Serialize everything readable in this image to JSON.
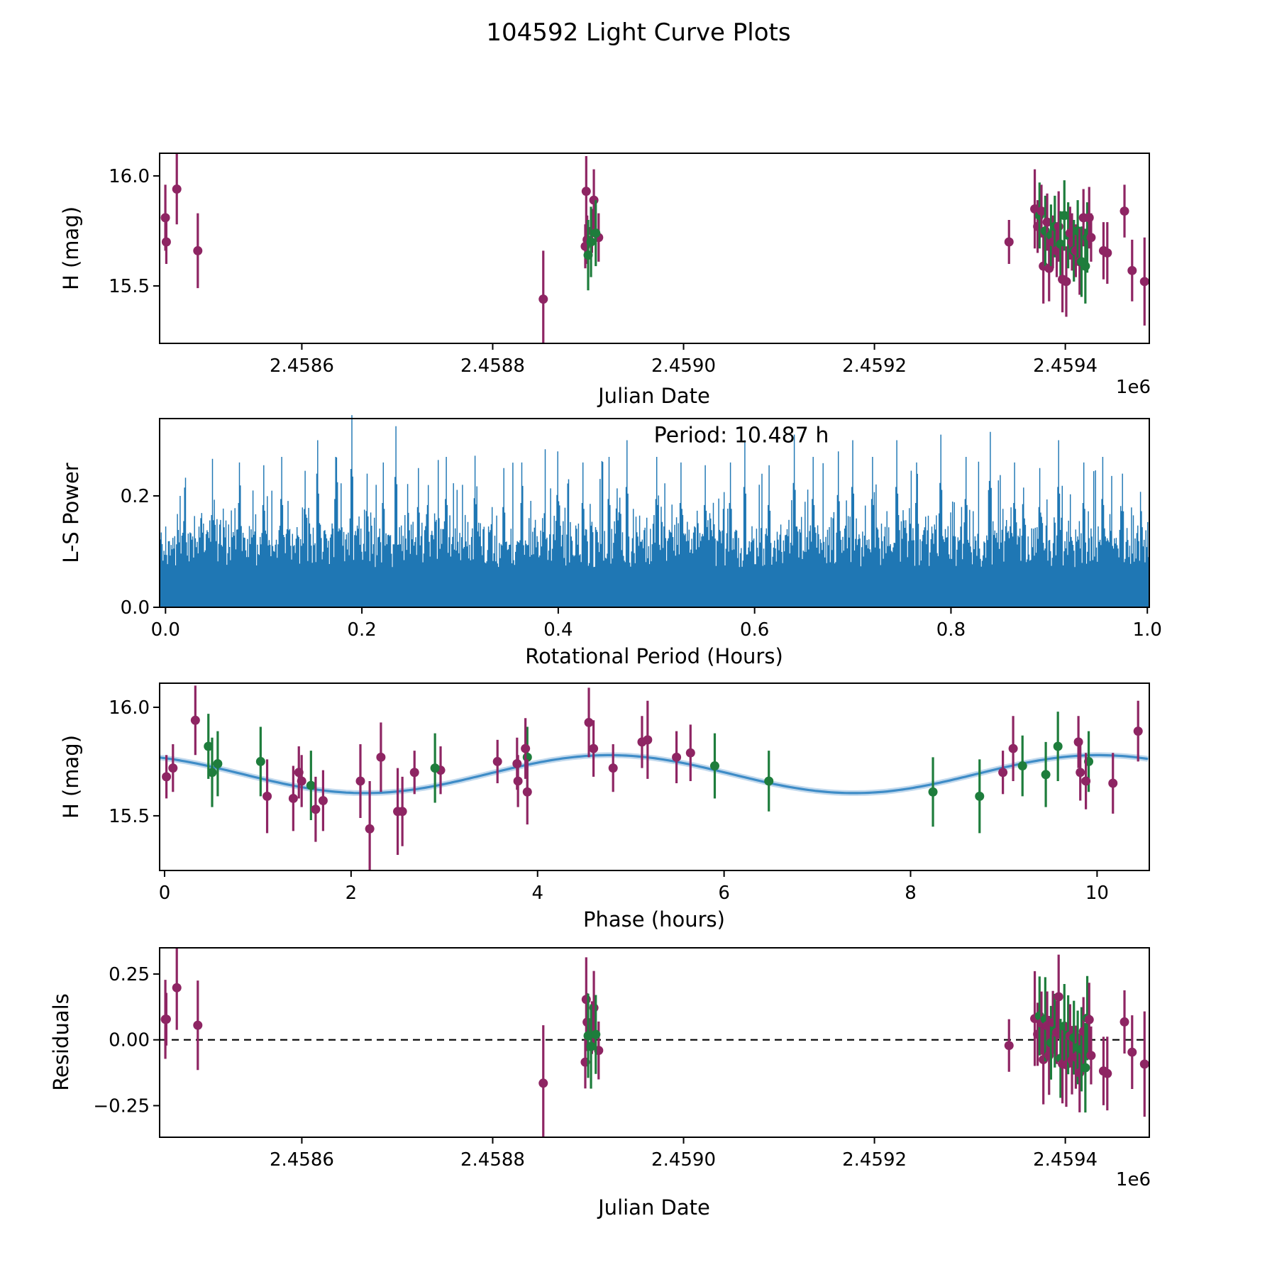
{
  "title": "104592 Light Curve Plots",
  "colors": {
    "purple": "#8E2563",
    "green": "#1E7D3C",
    "periodogram_blue": "#1f77b4",
    "curve_blue": "#3E8CC7",
    "curve_halo": "rgba(120,170,215,0.45)",
    "axis": "#000000"
  },
  "model": {
    "mean": 15.692,
    "amplitude": 0.0875,
    "period_hours": 5.2435,
    "phase_of_max": 4.77,
    "rotation_period_label": "Period: 10.487 h"
  },
  "observations": [
    {
      "jd": 2458457,
      "ph": 9.1,
      "mag": 15.81,
      "err": 0.15,
      "c": "p"
    },
    {
      "jd": 2458458,
      "ph": 2.68,
      "mag": 15.7,
      "err": 0.1,
      "c": "p"
    },
    {
      "jd": 2458469,
      "ph": 0.33,
      "mag": 15.94,
      "err": 0.16,
      "c": "p"
    },
    {
      "jd": 2458491,
      "ph": 2.1,
      "mag": 15.66,
      "err": 0.17,
      "c": "p"
    },
    {
      "jd": 2458853,
      "ph": 2.2,
      "mag": 15.44,
      "err": 0.22,
      "c": "p"
    },
    {
      "jd": 2458898,
      "ph": 4.55,
      "mag": 15.93,
      "err": 0.16,
      "c": "p"
    },
    {
      "jd": 2458906,
      "ph": 10.44,
      "mag": 15.89,
      "err": 0.14,
      "c": "p"
    },
    {
      "jd": 2458904,
      "ph": 3.57,
      "mag": 15.75,
      "err": 0.1,
      "c": "p"
    },
    {
      "jd": 2458899,
      "ph": 2.96,
      "mag": 15.71,
      "err": 0.11,
      "c": "p"
    },
    {
      "jd": 2458897,
      "ph": 0.02,
      "mag": 15.68,
      "err": 0.1,
      "c": "p"
    },
    {
      "jd": 2458911,
      "ph": 0.09,
      "mag": 15.72,
      "err": 0.11,
      "c": "p"
    },
    {
      "jd": 2458900,
      "ph": 1.57,
      "mag": 15.64,
      "err": 0.16,
      "c": "g"
    },
    {
      "jd": 2458903,
      "ph": 0.51,
      "mag": 15.7,
      "err": 0.16,
      "c": "g"
    },
    {
      "jd": 2458908,
      "ph": 0.57,
      "mag": 15.74,
      "err": 0.15,
      "c": "g"
    },
    {
      "jd": 2459341,
      "ph": 8.99,
      "mag": 15.7,
      "err": 0.1,
      "c": "p"
    },
    {
      "jd": 2459368,
      "ph": 5.18,
      "mag": 15.85,
      "err": 0.18,
      "c": "p"
    },
    {
      "jd": 2459371,
      "ph": 5.49,
      "mag": 15.77,
      "err": 0.12,
      "c": "p"
    },
    {
      "jd": 2459373,
      "ph": 0.47,
      "mag": 15.82,
      "err": 0.15,
      "c": "g"
    },
    {
      "jd": 2459375,
      "ph": 9.8,
      "mag": 15.84,
      "err": 0.12,
      "c": "p"
    },
    {
      "jd": 2459377,
      "ph": 1.1,
      "mag": 15.59,
      "err": 0.17,
      "c": "p"
    },
    {
      "jd": 2459379,
      "ph": 1.03,
      "mag": 15.75,
      "err": 0.16,
      "c": "g"
    },
    {
      "jd": 2459381,
      "ph": 5.64,
      "mag": 15.79,
      "err": 0.13,
      "c": "p"
    },
    {
      "jd": 2459383,
      "ph": 1.38,
      "mag": 15.58,
      "err": 0.15,
      "c": "p"
    },
    {
      "jd": 2459385,
      "ph": 9.2,
      "mag": 15.73,
      "err": 0.14,
      "c": "g"
    },
    {
      "jd": 2459387,
      "ph": 1.44,
      "mag": 15.7,
      "err": 0.12,
      "c": "p"
    },
    {
      "jd": 2459389,
      "ph": 3.89,
      "mag": 15.77,
      "err": 0.14,
      "c": "g"
    },
    {
      "jd": 2459391,
      "ph": 1.47,
      "mag": 15.66,
      "err": 0.12,
      "c": "p"
    },
    {
      "jd": 2459393,
      "ph": 2.32,
      "mag": 15.77,
      "err": 0.16,
      "c": "p"
    },
    {
      "jd": 2459395,
      "ph": 9.45,
      "mag": 15.69,
      "err": 0.15,
      "c": "g"
    },
    {
      "jd": 2459397,
      "ph": 1.62,
      "mag": 15.53,
      "err": 0.15,
      "c": "p"
    },
    {
      "jd": 2459399,
      "ph": 9.58,
      "mag": 15.82,
      "err": 0.16,
      "c": "g"
    },
    {
      "jd": 2459401,
      "ph": 2.55,
      "mag": 15.52,
      "err": 0.16,
      "c": "p"
    },
    {
      "jd": 2459403,
      "ph": 5.9,
      "mag": 15.73,
      "err": 0.15,
      "c": "g"
    },
    {
      "jd": 2459405,
      "ph": 3.78,
      "mag": 15.74,
      "err": 0.12,
      "c": "p"
    },
    {
      "jd": 2459407,
      "ph": 9.82,
      "mag": 15.7,
      "err": 0.13,
      "c": "p"
    },
    {
      "jd": 2459409,
      "ph": 6.48,
      "mag": 15.66,
      "err": 0.14,
      "c": "g"
    },
    {
      "jd": 2459411,
      "ph": 3.79,
      "mag": 15.66,
      "err": 0.12,
      "c": "p"
    },
    {
      "jd": 2459413,
      "ph": 9.91,
      "mag": 15.75,
      "err": 0.14,
      "c": "g"
    },
    {
      "jd": 2459415,
      "ph": 3.89,
      "mag": 15.61,
      "err": 0.15,
      "c": "p"
    },
    {
      "jd": 2459417,
      "ph": 8.24,
      "mag": 15.61,
      "err": 0.16,
      "c": "g"
    },
    {
      "jd": 2459419,
      "ph": 4.6,
      "mag": 15.81,
      "err": 0.13,
      "c": "p"
    },
    {
      "jd": 2459421,
      "ph": 8.74,
      "mag": 15.59,
      "err": 0.17,
      "c": "g"
    },
    {
      "jd": 2459423,
      "ph": 2.9,
      "mag": 15.72,
      "err": 0.16,
      "c": "g"
    },
    {
      "jd": 2459425,
      "ph": 3.87,
      "mag": 15.81,
      "err": 0.14,
      "c": "p"
    },
    {
      "jd": 2459427,
      "ph": 4.81,
      "mag": 15.72,
      "err": 0.11,
      "c": "p"
    },
    {
      "jd": 2459440,
      "ph": 9.88,
      "mag": 15.66,
      "err": 0.13,
      "c": "p"
    },
    {
      "jd": 2459444,
      "ph": 10.17,
      "mag": 15.65,
      "err": 0.14,
      "c": "p"
    },
    {
      "jd": 2459462,
      "ph": 5.12,
      "mag": 15.84,
      "err": 0.12,
      "c": "p"
    },
    {
      "jd": 2459470,
      "ph": 1.7,
      "mag": 15.57,
      "err": 0.14,
      "c": "p"
    },
    {
      "jd": 2459483,
      "ph": 2.5,
      "mag": 15.52,
      "err": 0.2,
      "c": "p"
    }
  ],
  "chart_data": [
    {
      "panel": "jd-magnitude",
      "type": "scatter",
      "xlabel": "Julian Date",
      "ylabel": "H (mag)",
      "offset_text": "1e6",
      "xlim": [
        2458451,
        2459488
      ],
      "ylim": [
        15.239,
        16.103
      ],
      "x_source": "jd",
      "y_source": "mag",
      "xticks": [
        {
          "v": 2458600,
          "label": "2.4586"
        },
        {
          "v": 2458800,
          "label": "2.4588"
        },
        {
          "v": 2459000,
          "label": "2.4590"
        },
        {
          "v": 2459200,
          "label": "2.4592"
        },
        {
          "v": 2459400,
          "label": "2.4594"
        }
      ],
      "yticks": [
        {
          "v": 16.0,
          "label": "16.0"
        },
        {
          "v": 15.5,
          "label": "15.5"
        }
      ]
    },
    {
      "panel": "periodogram",
      "type": "bar",
      "xlabel": "Rotational Period (Hours)",
      "ylabel": "L-S Power",
      "xlim": [
        -0.006,
        1.002
      ],
      "ylim": [
        0,
        0.3388
      ],
      "annotation": {
        "text": "Period: 10.487 h"
      },
      "noise": {
        "seed": 7,
        "n_lines": 1100,
        "base_min": 0.072,
        "base_span": 0.075
      },
      "peaks": [
        {
          "x": 0.019,
          "p": 0.215
        },
        {
          "x": 0.048,
          "p": 0.23
        },
        {
          "x": 0.075,
          "p": 0.26
        },
        {
          "x": 0.1,
          "p": 0.255
        },
        {
          "x": 0.118,
          "p": 0.27
        },
        {
          "x": 0.142,
          "p": 0.245
        },
        {
          "x": 0.155,
          "p": 0.3
        },
        {
          "x": 0.173,
          "p": 0.27
        },
        {
          "x": 0.19,
          "p": 0.345
        },
        {
          "x": 0.205,
          "p": 0.24
        },
        {
          "x": 0.222,
          "p": 0.26
        },
        {
          "x": 0.235,
          "p": 0.325
        },
        {
          "x": 0.258,
          "p": 0.25
        },
        {
          "x": 0.286,
          "p": 0.27
        },
        {
          "x": 0.315,
          "p": 0.272
        },
        {
          "x": 0.345,
          "p": 0.25
        },
        {
          "x": 0.363,
          "p": 0.26
        },
        {
          "x": 0.4,
          "p": 0.28
        },
        {
          "x": 0.425,
          "p": 0.26
        },
        {
          "x": 0.452,
          "p": 0.27
        },
        {
          "x": 0.47,
          "p": 0.3
        },
        {
          "x": 0.5,
          "p": 0.27
        },
        {
          "x": 0.525,
          "p": 0.26
        },
        {
          "x": 0.55,
          "p": 0.255
        },
        {
          "x": 0.575,
          "p": 0.26
        },
        {
          "x": 0.59,
          "p": 0.3
        },
        {
          "x": 0.615,
          "p": 0.255
        },
        {
          "x": 0.64,
          "p": 0.31
        },
        {
          "x": 0.66,
          "p": 0.27
        },
        {
          "x": 0.685,
          "p": 0.28
        },
        {
          "x": 0.7,
          "p": 0.3
        },
        {
          "x": 0.72,
          "p": 0.27
        },
        {
          "x": 0.745,
          "p": 0.3
        },
        {
          "x": 0.765,
          "p": 0.26
        },
        {
          "x": 0.79,
          "p": 0.31
        },
        {
          "x": 0.815,
          "p": 0.27
        },
        {
          "x": 0.84,
          "p": 0.315
        },
        {
          "x": 0.865,
          "p": 0.26
        },
        {
          "x": 0.89,
          "p": 0.25
        },
        {
          "x": 0.91,
          "p": 0.3
        },
        {
          "x": 0.935,
          "p": 0.26
        },
        {
          "x": 0.955,
          "p": 0.27
        },
        {
          "x": 0.975,
          "p": 0.24
        }
      ],
      "xticks": [
        {
          "v": 0.0,
          "label": "0.0"
        },
        {
          "v": 0.2,
          "label": "0.2"
        },
        {
          "v": 0.4,
          "label": "0.4"
        },
        {
          "v": 0.6,
          "label": "0.6"
        },
        {
          "v": 0.8,
          "label": "0.8"
        },
        {
          "v": 1.0,
          "label": "1.0"
        }
      ],
      "yticks": [
        {
          "v": 0.2,
          "label": "0.2"
        },
        {
          "v": 0.0,
          "label": "0.0"
        }
      ]
    },
    {
      "panel": "phase-magnitude",
      "type": "scatter",
      "xlabel": "Phase (hours)",
      "ylabel": "H (mag)",
      "xlim": [
        -0.053,
        10.56
      ],
      "ylim": [
        15.248,
        16.111
      ],
      "x_source": "ph",
      "y_source": "mag",
      "show_model_curve": true,
      "xticks": [
        {
          "v": 0,
          "label": "0"
        },
        {
          "v": 2,
          "label": "2"
        },
        {
          "v": 4,
          "label": "4"
        },
        {
          "v": 6,
          "label": "6"
        },
        {
          "v": 8,
          "label": "8"
        },
        {
          "v": 10,
          "label": "10"
        }
      ],
      "yticks": [
        {
          "v": 16.0,
          "label": "16.0"
        },
        {
          "v": 15.5,
          "label": "15.5"
        }
      ]
    },
    {
      "panel": "jd-residuals",
      "type": "scatter",
      "xlabel": "Julian Date",
      "ylabel": "Residuals",
      "offset_text": "1e6",
      "xlim": [
        2458451,
        2459488
      ],
      "ylim": [
        -0.37,
        0.3495
      ],
      "x_source": "jd",
      "y_source": "residual",
      "hline": 0,
      "xticks": [
        {
          "v": 2458600,
          "label": "2.4586"
        },
        {
          "v": 2458800,
          "label": "2.4588"
        },
        {
          "v": 2459000,
          "label": "2.4590"
        },
        {
          "v": 2459200,
          "label": "2.4592"
        },
        {
          "v": 2459400,
          "label": "2.4594"
        }
      ],
      "yticks": [
        {
          "v": 0.25,
          "label": "0.25"
        },
        {
          "v": 0.0,
          "label": "0.00"
        },
        {
          "v": -0.25,
          "label": "−0.25"
        }
      ]
    }
  ]
}
